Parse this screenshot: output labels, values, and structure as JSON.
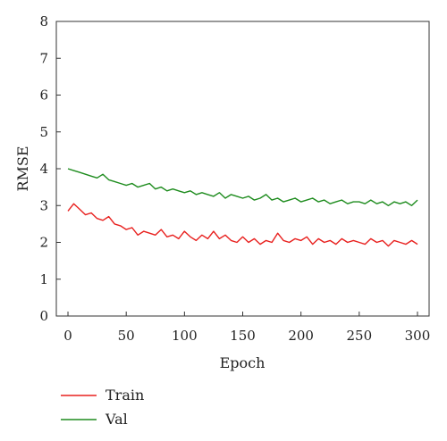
{
  "chart_data": {
    "type": "line",
    "title": "",
    "xlabel": "Epoch",
    "ylabel": "RMSE",
    "xlim": [
      -10,
      310
    ],
    "ylim": [
      0,
      8
    ],
    "x_ticks": [
      0,
      50,
      100,
      150,
      200,
      250,
      300
    ],
    "y_ticks": [
      0,
      1,
      2,
      3,
      4,
      5,
      6,
      7,
      8
    ],
    "grid": false,
    "legend": "below-left",
    "x": [
      0,
      5,
      10,
      15,
      20,
      25,
      30,
      35,
      40,
      45,
      50,
      55,
      60,
      65,
      70,
      75,
      80,
      85,
      90,
      95,
      100,
      105,
      110,
      115,
      120,
      125,
      130,
      135,
      140,
      145,
      150,
      155,
      160,
      165,
      170,
      175,
      180,
      185,
      190,
      195,
      200,
      205,
      210,
      215,
      220,
      225,
      230,
      235,
      240,
      245,
      250,
      255,
      260,
      265,
      270,
      275,
      280,
      285,
      290,
      295,
      300
    ],
    "series": [
      {
        "name": "Train",
        "color": "#e8201e",
        "values": [
          2.85,
          3.05,
          2.9,
          2.75,
          2.8,
          2.65,
          2.6,
          2.7,
          2.5,
          2.45,
          2.35,
          2.4,
          2.2,
          2.3,
          2.25,
          2.2,
          2.35,
          2.15,
          2.2,
          2.1,
          2.3,
          2.15,
          2.05,
          2.2,
          2.1,
          2.3,
          2.1,
          2.2,
          2.05,
          2.0,
          2.15,
          2.0,
          2.1,
          1.95,
          2.05,
          2.0,
          2.25,
          2.05,
          2.0,
          2.1,
          2.05,
          2.15,
          1.95,
          2.1,
          2.0,
          2.05,
          1.95,
          2.1,
          2.0,
          2.05,
          2.0,
          1.95,
          2.1,
          2.0,
          2.05,
          1.9,
          2.05,
          2.0,
          1.95,
          2.05,
          1.95
        ]
      },
      {
        "name": "Val",
        "color": "#1e8c1e",
        "values": [
          4.0,
          3.95,
          3.9,
          3.85,
          3.8,
          3.75,
          3.85,
          3.7,
          3.65,
          3.6,
          3.55,
          3.6,
          3.5,
          3.55,
          3.6,
          3.45,
          3.5,
          3.4,
          3.45,
          3.4,
          3.35,
          3.4,
          3.3,
          3.35,
          3.3,
          3.25,
          3.35,
          3.2,
          3.3,
          3.25,
          3.2,
          3.25,
          3.15,
          3.2,
          3.3,
          3.15,
          3.2,
          3.1,
          3.15,
          3.2,
          3.1,
          3.15,
          3.2,
          3.1,
          3.15,
          3.05,
          3.1,
          3.15,
          3.05,
          3.1,
          3.1,
          3.05,
          3.15,
          3.05,
          3.1,
          3.0,
          3.1,
          3.05,
          3.1,
          3.0,
          3.15
        ]
      }
    ]
  }
}
